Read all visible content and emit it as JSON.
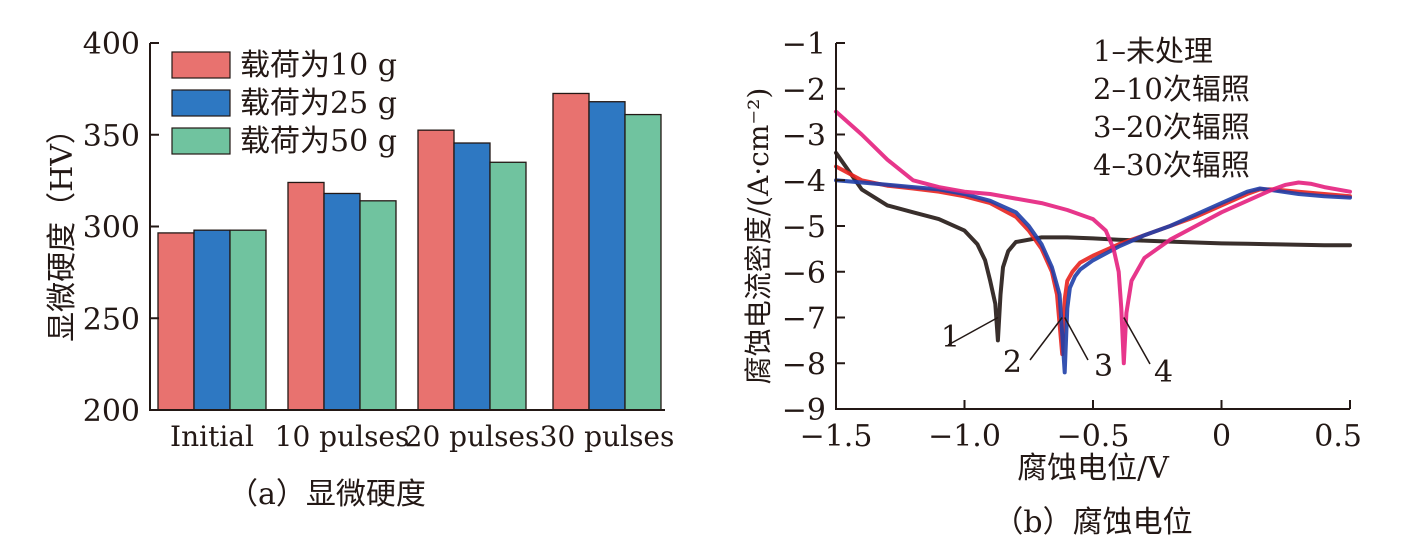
{
  "chart_data": [
    {
      "type": "bar",
      "caption": "（a）显微硬度",
      "ylabel": "显微硬度（HV）",
      "xlabel": "",
      "categories": [
        "Initial",
        "10 pulses",
        "20 pulses",
        "30 pulses"
      ],
      "ylim": [
        200,
        400
      ],
      "yticks": [
        200,
        250,
        300,
        350,
        400
      ],
      "grid": false,
      "legend_position": "top-left",
      "series": [
        {
          "name": "载荷为10 g",
          "color": "#e8726f",
          "values": [
            296.5,
            324,
            352.5,
            372.5
          ]
        },
        {
          "name": "载荷为25 g",
          "color": "#2e78c2",
          "values": [
            298,
            318,
            345.5,
            368
          ]
        },
        {
          "name": "载荷为50 g",
          "color": "#70c39f",
          "values": [
            298,
            314,
            335,
            361
          ]
        }
      ]
    },
    {
      "type": "line",
      "caption": "（b）腐蚀电位",
      "xlabel": "腐蚀电位/V",
      "ylabel": "腐蚀电流密度/(A·cm⁻²)",
      "xlim": [
        -1.5,
        0.5
      ],
      "ylim": [
        -9,
        -1
      ],
      "xticks": [
        -1.5,
        -1.0,
        -0.5,
        0,
        0.5
      ],
      "xtick_labels": [
        "−1.5",
        "−1.0",
        "−0.5",
        "0",
        "0.5"
      ],
      "yticks": [
        -9,
        -8,
        -7,
        -6,
        -5,
        -4,
        -3,
        -2,
        -1
      ],
      "ytick_labels": [
        "−9",
        "−8",
        "−7",
        "−6",
        "−5",
        "−4",
        "−3",
        "−2",
        "−1"
      ],
      "grid": false,
      "legend_position": "top-right",
      "legend": [
        "1–未处理",
        "2–10次辐照",
        "3–20次辐照",
        "4–30次辐照"
      ],
      "series": [
        {
          "label": "1",
          "color": "#231815",
          "x": [
            -1.5,
            -1.4,
            -1.3,
            -1.2,
            -1.1,
            -1.0,
            -0.95,
            -0.92,
            -0.9,
            -0.88,
            -0.87,
            -0.86,
            -0.85,
            -0.83,
            -0.8,
            -0.7,
            -0.6,
            -0.5,
            -0.4,
            -0.3,
            -0.2,
            -0.1,
            0,
            0.1,
            0.2,
            0.3,
            0.4,
            0.5
          ],
          "y": [
            -3.4,
            -4.2,
            -4.55,
            -4.7,
            -4.85,
            -5.1,
            -5.4,
            -5.75,
            -6.2,
            -6.7,
            -7.5,
            -6.5,
            -5.9,
            -5.55,
            -5.35,
            -5.25,
            -5.25,
            -5.27,
            -5.3,
            -5.32,
            -5.34,
            -5.36,
            -5.38,
            -5.39,
            -5.4,
            -5.41,
            -5.42,
            -5.42
          ]
        },
        {
          "label": "2",
          "color": "#e8231f",
          "x": [
            -1.5,
            -1.4,
            -1.3,
            -1.2,
            -1.1,
            -1.0,
            -0.9,
            -0.8,
            -0.75,
            -0.7,
            -0.66,
            -0.64,
            -0.62,
            -0.61,
            -0.6,
            -0.58,
            -0.55,
            -0.5,
            -0.4,
            -0.3,
            -0.2,
            -0.1,
            0,
            0.1,
            0.15,
            0.2,
            0.3,
            0.4,
            0.5
          ],
          "y": [
            -3.7,
            -4.0,
            -4.12,
            -4.18,
            -4.25,
            -4.35,
            -4.5,
            -4.8,
            -5.1,
            -5.5,
            -6.0,
            -6.5,
            -7.8,
            -6.6,
            -6.2,
            -6.0,
            -5.8,
            -5.65,
            -5.4,
            -5.2,
            -5.0,
            -4.8,
            -4.55,
            -4.3,
            -4.2,
            -4.2,
            -4.25,
            -4.3,
            -4.35
          ]
        },
        {
          "label": "3",
          "color": "#1f3fa8",
          "x": [
            -1.5,
            -1.4,
            -1.3,
            -1.2,
            -1.1,
            -1.0,
            -0.9,
            -0.8,
            -0.75,
            -0.7,
            -0.66,
            -0.63,
            -0.61,
            -0.6,
            -0.59,
            -0.57,
            -0.55,
            -0.5,
            -0.4,
            -0.3,
            -0.2,
            -0.1,
            0,
            0.1,
            0.15,
            0.2,
            0.3,
            0.4,
            0.5
          ],
          "y": [
            -4.0,
            -4.05,
            -4.1,
            -4.15,
            -4.2,
            -4.3,
            -4.45,
            -4.7,
            -5.0,
            -5.4,
            -5.9,
            -6.5,
            -8.2,
            -6.8,
            -6.35,
            -6.1,
            -5.95,
            -5.75,
            -5.45,
            -5.2,
            -5.0,
            -4.75,
            -4.5,
            -4.25,
            -4.18,
            -4.22,
            -4.3,
            -4.35,
            -4.38
          ]
        },
        {
          "label": "4",
          "color": "#e4207e",
          "x": [
            -1.5,
            -1.4,
            -1.3,
            -1.2,
            -1.1,
            -1.0,
            -0.9,
            -0.8,
            -0.7,
            -0.6,
            -0.5,
            -0.45,
            -0.42,
            -0.4,
            -0.39,
            -0.38,
            -0.37,
            -0.35,
            -0.3,
            -0.2,
            -0.1,
            0,
            0.1,
            0.2,
            0.25,
            0.3,
            0.35,
            0.4,
            0.5
          ],
          "y": [
            -2.5,
            -3.0,
            -3.55,
            -4.0,
            -4.15,
            -4.25,
            -4.3,
            -4.4,
            -4.5,
            -4.65,
            -4.85,
            -5.1,
            -5.5,
            -6.0,
            -6.8,
            -8.0,
            -6.9,
            -6.2,
            -5.7,
            -5.3,
            -5.0,
            -4.7,
            -4.45,
            -4.2,
            -4.1,
            -4.05,
            -4.08,
            -4.15,
            -4.25
          ]
        }
      ]
    }
  ]
}
